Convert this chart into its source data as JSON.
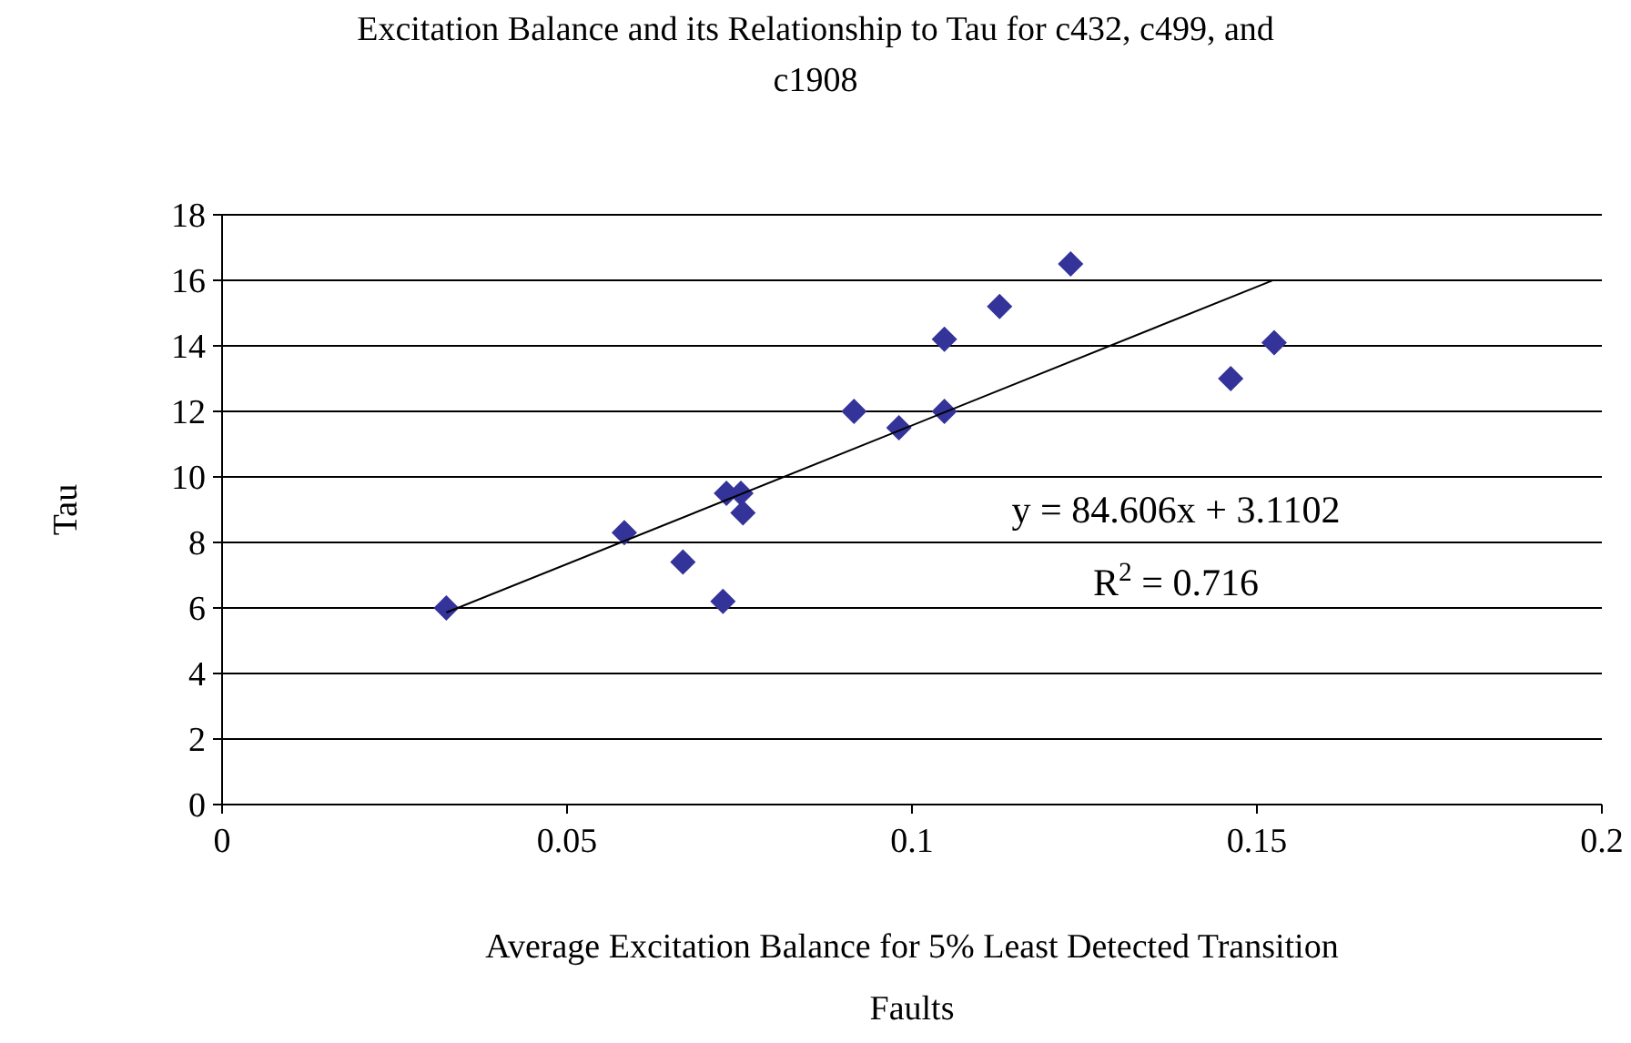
{
  "chart_data": {
    "type": "scatter",
    "title": "Excitation Balance and its Relationship to Tau for c432, c499, and c1908",
    "xlabel": "Average Excitation Balance for 5% Least Detected Transition Faults",
    "ylabel": "Tau",
    "grid": "y",
    "xlim": [
      0,
      0.2
    ],
    "xticks": [
      0,
      0.05,
      0.1,
      0.15,
      0.2
    ],
    "ylim": [
      0,
      18
    ],
    "yticks": [
      0,
      2,
      4,
      6,
      8,
      10,
      12,
      14,
      16,
      18
    ],
    "series": [
      {
        "marker": "diamond",
        "color": "#333399",
        "x": [
          0.0325,
          0.0583,
          0.0668,
          0.0726,
          0.0731,
          0.0752,
          0.0755,
          0.0916,
          0.0981,
          0.1047,
          0.1047,
          0.1127,
          0.123,
          0.1462,
          0.1525
        ],
        "values": [
          6.0,
          8.3,
          7.4,
          6.2,
          9.5,
          9.5,
          8.9,
          12.0,
          11.5,
          12.0,
          14.2,
          15.2,
          16.5,
          13.0,
          14.1
        ]
      },
      {
        "type": "line",
        "color": "#000000",
        "x": [
          0.0325,
          0.1522
        ],
        "values": [
          5.86,
          15.99
        ]
      }
    ],
    "annotations": [
      "y = 84.606x + 3.1102",
      "R$^{2}$ = 0.716"
    ]
  }
}
